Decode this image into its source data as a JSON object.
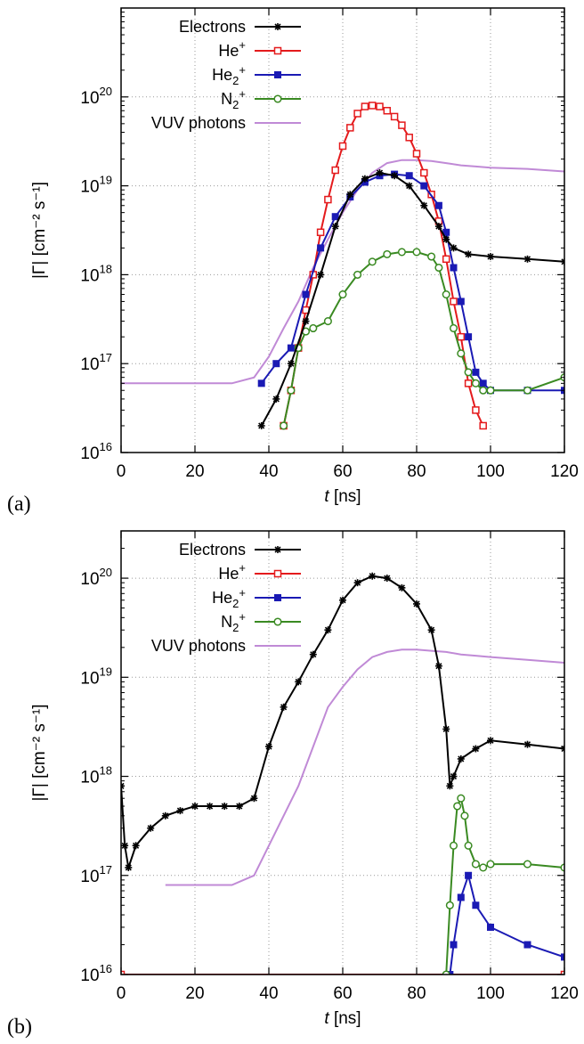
{
  "figure": {
    "panel_labels": [
      "(a)",
      "(b)"
    ]
  },
  "colors": {
    "Electrons": "#000000",
    "He+": "#e41a1c",
    "He2+": "#1a1ab4",
    "N2+": "#3a8a22",
    "VUV photons": "#c08ad6"
  },
  "chart_data": [
    {
      "type": "line",
      "panel": "(a)",
      "xlabel_italic": "t",
      "xlabel_unit": "[ns]",
      "ylabel": "|Γ| [cm⁻² s⁻¹]",
      "yscale": "log",
      "xlim": [
        0,
        120
      ],
      "ylim": [
        1e+16,
        1e+21
      ],
      "x_ticks": [
        "0",
        "20",
        "40",
        "60",
        "80",
        "100",
        "120"
      ],
      "y_ticks": [
        {
          "base": "10",
          "exp": "16"
        },
        {
          "base": "10",
          "exp": "17"
        },
        {
          "base": "10",
          "exp": "18"
        },
        {
          "base": "10",
          "exp": "19"
        },
        {
          "base": "10",
          "exp": "20"
        }
      ],
      "grid": true,
      "legend_position": "top-left",
      "legend": [
        {
          "label": "Electrons",
          "sup": "",
          "sub": "",
          "marker": "star"
        },
        {
          "label": "He",
          "sup": "+",
          "sub": "",
          "marker": "square-open"
        },
        {
          "label": "He",
          "sup": "+",
          "sub": "2",
          "marker": "square-filled"
        },
        {
          "label": "N",
          "sup": "+",
          "sub": "2",
          "marker": "circle-open"
        },
        {
          "label": "VUV photons",
          "sup": "",
          "sub": "",
          "marker": "none"
        }
      ],
      "series": [
        {
          "name": "Electrons",
          "x": [
            38,
            42,
            46,
            50,
            54,
            58,
            62,
            66,
            70,
            74,
            78,
            82,
            86,
            88,
            90,
            94,
            100,
            110,
            120
          ],
          "y": [
            2e+16,
            4e+16,
            1e+17,
            3e+17,
            1e+18,
            3.5e+18,
            8e+18,
            1.2e+19,
            1.4e+19,
            1.3e+19,
            1e+19,
            6e+18,
            3.5e+18,
            2.5e+18,
            2e+18,
            1.7e+18,
            1.6e+18,
            1.5e+18,
            1.4e+18
          ]
        },
        {
          "name": "He+",
          "x": [
            44,
            46,
            48,
            50,
            52,
            54,
            56,
            58,
            60,
            62,
            64,
            66,
            68,
            70,
            72,
            74,
            76,
            78,
            80,
            82,
            84,
            86,
            88,
            90,
            92,
            94,
            96,
            98
          ],
          "y": [
            2e+16,
            5e+16,
            1.5e+17,
            4e+17,
            1e+18,
            3e+18,
            7e+18,
            1.5e+19,
            2.8e+19,
            4.5e+19,
            6.5e+19,
            7.8e+19,
            8e+19,
            7.8e+19,
            7e+19,
            6e+19,
            4.8e+19,
            3.5e+19,
            2.3e+19,
            1.4e+19,
            8e+18,
            4e+18,
            1.5e+18,
            5e+17,
            2e+17,
            6e+16,
            3e+16,
            2e+16
          ]
        },
        {
          "name": "He2+",
          "x": [
            38,
            42,
            46,
            50,
            54,
            58,
            62,
            66,
            70,
            74,
            78,
            82,
            86,
            88,
            90,
            92,
            94,
            96,
            98,
            100,
            110,
            120
          ],
          "y": [
            6e+16,
            1e+17,
            1.5e+17,
            6e+17,
            2e+18,
            4.5e+18,
            7.5e+18,
            1.1e+19,
            1.3e+19,
            1.35e+19,
            1.3e+19,
            1e+19,
            6e+18,
            3e+18,
            1.2e+18,
            5e+17,
            2e+17,
            8e+16,
            6e+16,
            5e+16,
            5e+16,
            5e+16
          ]
        },
        {
          "name": "N2+",
          "x": [
            44,
            46,
            48,
            50,
            52,
            56,
            60,
            64,
            68,
            72,
            76,
            80,
            84,
            86,
            88,
            90,
            92,
            94,
            96,
            98,
            100,
            110,
            120
          ],
          "y": [
            2e+16,
            5e+16,
            1.5e+17,
            2.3e+17,
            2.5e+17,
            3e+17,
            6e+17,
            1e+18,
            1.4e+18,
            1.7e+18,
            1.8e+18,
            1.8e+18,
            1.6e+18,
            1.2e+18,
            6e+17,
            2.5e+17,
            1.3e+17,
            8e+16,
            6e+16,
            5e+16,
            5e+16,
            5e+16,
            7e+16
          ]
        },
        {
          "name": "VUV photons",
          "x": [
            0,
            10,
            20,
            30,
            36,
            40,
            44,
            48,
            52,
            56,
            60,
            64,
            68,
            72,
            76,
            80,
            84,
            88,
            92,
            96,
            100,
            110,
            120
          ],
          "y": [
            6e+16,
            6e+16,
            6e+16,
            6e+16,
            7e+16,
            1.2e+17,
            2.5e+17,
            5e+17,
            1.2e+18,
            2.5e+18,
            5e+18,
            9e+18,
            1.4e+19,
            1.8e+19,
            1.95e+19,
            1.95e+19,
            1.9e+19,
            1.8e+19,
            1.7e+19,
            1.65e+19,
            1.6e+19,
            1.55e+19,
            1.45e+19
          ]
        }
      ]
    },
    {
      "type": "line",
      "panel": "(b)",
      "xlabel_italic": "t",
      "xlabel_unit": "[ns]",
      "ylabel": "|Γ| [cm⁻² s⁻¹]",
      "yscale": "log",
      "xlim": [
        0,
        120
      ],
      "ylim": [
        1e+16,
        3e+20
      ],
      "x_ticks": [
        "0",
        "20",
        "40",
        "60",
        "80",
        "100",
        "120"
      ],
      "y_ticks": [
        {
          "base": "10",
          "exp": "16"
        },
        {
          "base": "10",
          "exp": "17"
        },
        {
          "base": "10",
          "exp": "18"
        },
        {
          "base": "10",
          "exp": "19"
        },
        {
          "base": "10",
          "exp": "20"
        }
      ],
      "grid": true,
      "legend_position": "top-left",
      "legend": [
        {
          "label": "Electrons",
          "sup": "",
          "sub": "",
          "marker": "star"
        },
        {
          "label": "He",
          "sup": "+",
          "sub": "",
          "marker": "square-open"
        },
        {
          "label": "He",
          "sup": "+",
          "sub": "2",
          "marker": "square-filled"
        },
        {
          "label": "N",
          "sup": "+",
          "sub": "2",
          "marker": "circle-open"
        },
        {
          "label": "VUV photons",
          "sup": "",
          "sub": "",
          "marker": "none"
        }
      ],
      "series": [
        {
          "name": "Electrons",
          "x": [
            0,
            1,
            2,
            4,
            8,
            12,
            16,
            20,
            24,
            28,
            32,
            36,
            40,
            44,
            48,
            52,
            56,
            60,
            64,
            68,
            72,
            76,
            80,
            84,
            86,
            88,
            89,
            90,
            92,
            96,
            100,
            110,
            120
          ],
          "y": [
            8e+17,
            2e+17,
            1.2e+17,
            2e+17,
            3e+17,
            4e+17,
            4.5e+17,
            5e+17,
            5e+17,
            5e+17,
            5e+17,
            6e+17,
            2e+18,
            5e+18,
            9e+18,
            1.7e+19,
            3e+19,
            6e+19,
            9e+19,
            1.05e+20,
            1e+20,
            8e+19,
            5.5e+19,
            3e+19,
            1.3e+19,
            3e+18,
            8e+17,
            1e+18,
            1.5e+18,
            1.9e+18,
            2.3e+18,
            2.1e+18,
            1.9e+18
          ]
        },
        {
          "name": "He+",
          "x": [
            0,
            120
          ],
          "y": [
            1e+16,
            1e+16
          ]
        },
        {
          "name": "He2+",
          "x": [
            89,
            90,
            92,
            94,
            96,
            100,
            110,
            120
          ],
          "y": [
            1e+16,
            2e+16,
            6e+16,
            1e+17,
            5e+16,
            3e+16,
            2e+16,
            1.5e+16
          ]
        },
        {
          "name": "N2+",
          "x": [
            88,
            89,
            90,
            91,
            92,
            93,
            94,
            96,
            98,
            100,
            110,
            120
          ],
          "y": [
            1e+16,
            5e+16,
            2e+17,
            5e+17,
            6e+17,
            4e+17,
            2e+17,
            1.3e+17,
            1.2e+17,
            1.3e+17,
            1.3e+17,
            1.2e+17
          ]
        },
        {
          "name": "VUV photons",
          "x": [
            12,
            20,
            30,
            36,
            40,
            44,
            48,
            52,
            56,
            60,
            64,
            68,
            72,
            76,
            80,
            84,
            88,
            92,
            96,
            100,
            110,
            120
          ],
          "y": [
            8e+16,
            8e+16,
            8e+16,
            1e+17,
            2e+17,
            4e+17,
            8e+17,
            2e+18,
            5e+18,
            8e+18,
            1.2e+19,
            1.6e+19,
            1.8e+19,
            1.9e+19,
            1.9e+19,
            1.85e+19,
            1.8e+19,
            1.7e+19,
            1.65e+19,
            1.6e+19,
            1.5e+19,
            1.4e+19
          ]
        }
      ]
    }
  ]
}
